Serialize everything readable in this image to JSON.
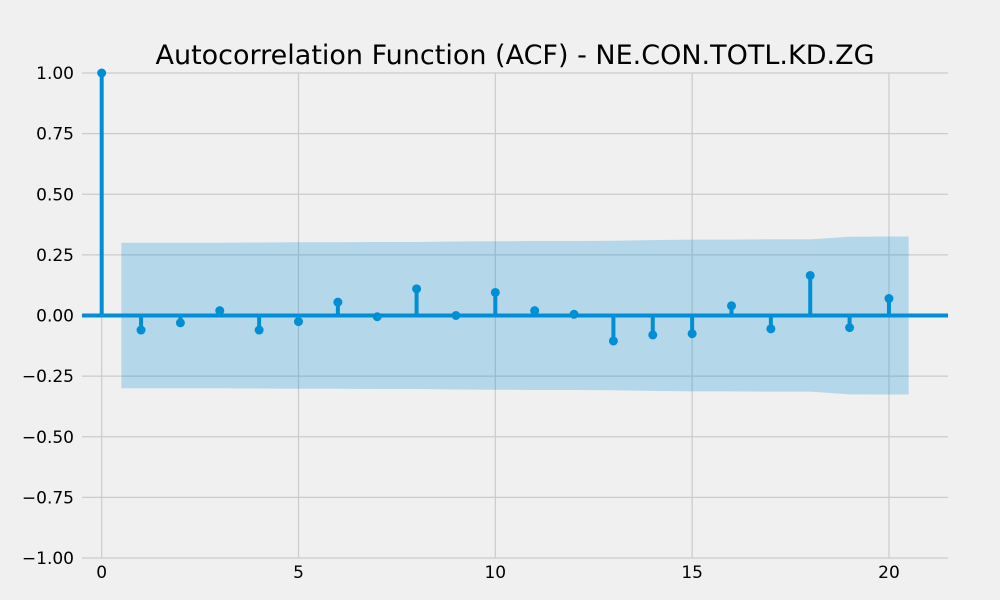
{
  "chart_data": {
    "type": "bar",
    "title": "Autocorrelation Function (ACF) - NE.CON.TOTL.KD.ZG",
    "xlabel": "",
    "ylabel": "",
    "xlim": [
      -0.5,
      21.5
    ],
    "ylim": [
      -1.0,
      1.0
    ],
    "x_ticks": [
      0,
      5,
      10,
      15,
      20
    ],
    "y_ticks": [
      -1.0,
      -0.75,
      -0.5,
      -0.25,
      0.0,
      0.25,
      0.5,
      0.75,
      1.0
    ],
    "x_tick_labels": [
      "0",
      "5",
      "10",
      "15",
      "20"
    ],
    "y_tick_labels": [
      "−1.00",
      "−0.75",
      "−0.50",
      "−0.25",
      "0.00",
      "0.25",
      "0.50",
      "0.75",
      "1.00"
    ],
    "grid": true,
    "series": [
      {
        "lags": [
          0,
          1,
          2,
          3,
          4,
          5,
          6,
          7,
          8,
          9,
          10,
          11,
          12,
          13,
          14,
          15,
          16,
          17,
          18,
          19,
          20
        ],
        "values": [
          1.0,
          -0.06,
          -0.03,
          0.02,
          -0.06,
          -0.025,
          0.055,
          -0.005,
          0.11,
          0.0,
          0.095,
          0.02,
          0.005,
          -0.105,
          -0.08,
          -0.075,
          0.04,
          -0.055,
          0.165,
          -0.05,
          0.07
        ]
      }
    ],
    "confidence_band": {
      "lags": [
        0.5,
        1,
        2,
        3,
        4,
        5,
        6,
        7,
        8,
        9,
        10,
        11,
        12,
        13,
        14,
        15,
        16,
        17,
        18,
        19,
        20,
        20.5
      ],
      "upper": [
        0.3,
        0.3,
        0.3,
        0.3,
        0.301,
        0.302,
        0.302,
        0.303,
        0.303,
        0.305,
        0.306,
        0.307,
        0.307,
        0.308,
        0.311,
        0.313,
        0.313,
        0.314,
        0.314,
        0.325,
        0.326,
        0.326
      ]
    },
    "colors": {
      "stem": "#008fd5",
      "band": "#008fd5",
      "grid": "#cbcbcb",
      "background": "#f0f0f0"
    }
  }
}
